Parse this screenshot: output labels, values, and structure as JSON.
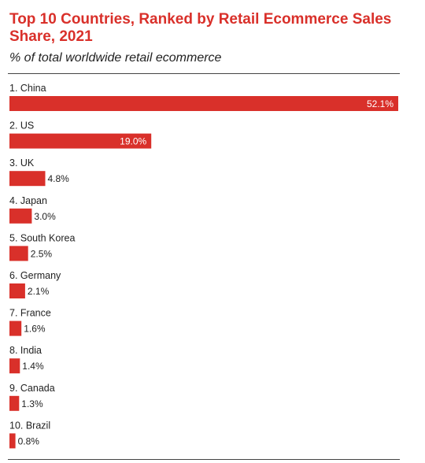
{
  "header": {
    "title": "Top 10 Countries, Ranked by Retail Ecommerce Sales Share, 2021",
    "subtitle": "% of total worldwide retail ecommerce"
  },
  "colors": {
    "bar": "#d9302a",
    "title": "#d9302a",
    "text": "#222222",
    "inside_label": "#ffffff"
  },
  "chart_data": {
    "type": "bar",
    "orientation": "horizontal",
    "title": "Top 10 Countries, Ranked by Retail Ecommerce Sales Share, 2021",
    "subtitle": "% of total worldwide retail ecommerce",
    "categories": [
      "1. China",
      "2. US",
      "3. UK",
      "4. Japan",
      "5. South Korea",
      "6. Germany",
      "7. France",
      "8. India",
      "9. Canada",
      "10. Brazil"
    ],
    "values": [
      52.1,
      19.0,
      4.8,
      3.0,
      2.5,
      2.1,
      1.6,
      1.4,
      1.3,
      0.8
    ],
    "value_labels": [
      "52.1%",
      "19.0%",
      "4.8%",
      "3.0%",
      "2.5%",
      "2.1%",
      "1.6%",
      "1.4%",
      "1.3%",
      "0.8%"
    ],
    "xlim": [
      0,
      52.1
    ],
    "grid": false,
    "legend": "none"
  }
}
